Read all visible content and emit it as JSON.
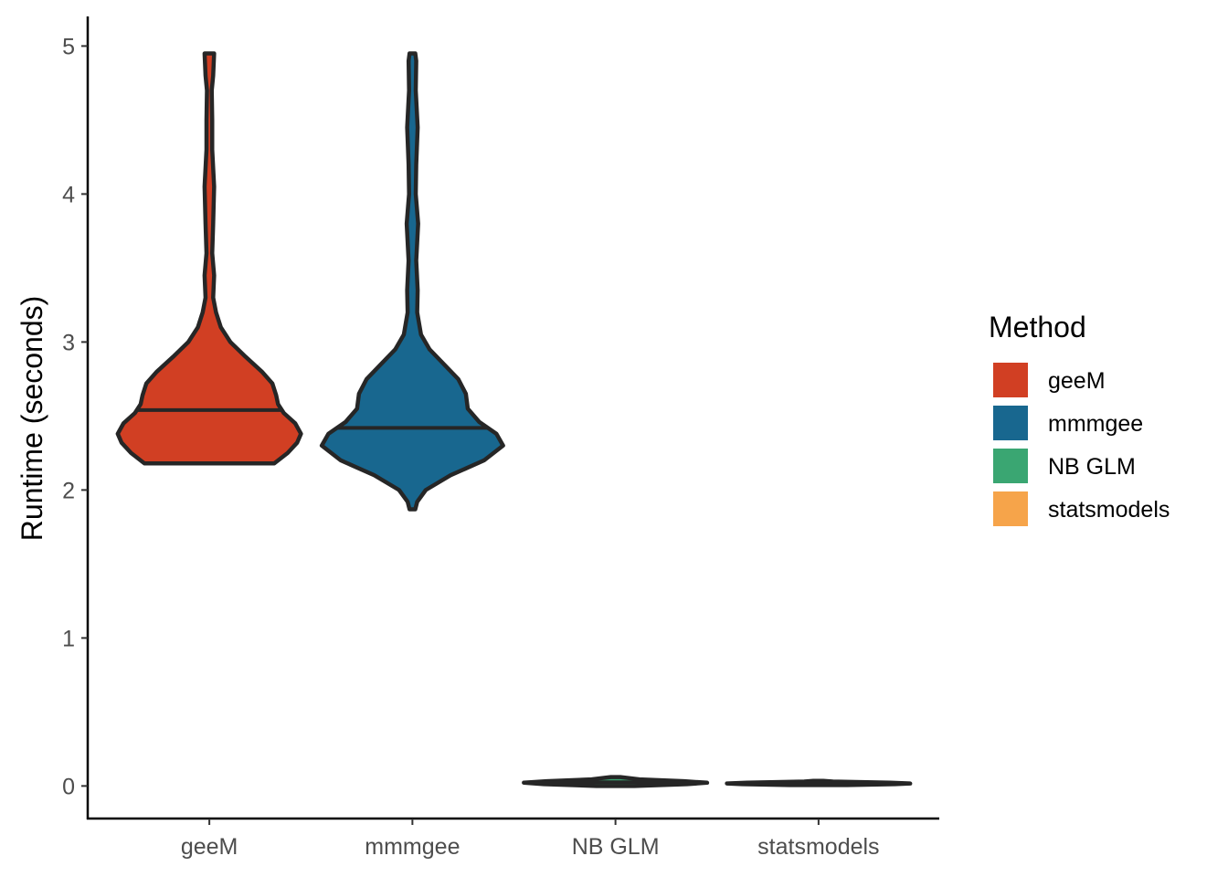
{
  "chart_data": {
    "type": "violin",
    "ylabel": "Runtime (seconds)",
    "xlabel": "",
    "ylim": [
      -0.22,
      5.2
    ],
    "yticks": [
      0,
      1,
      2,
      3,
      4,
      5
    ],
    "categories": [
      "geeM",
      "mmmgee",
      "NB GLM",
      "statsmodels"
    ],
    "grid": false,
    "legend": {
      "title": "Method",
      "placement": "right",
      "entries": [
        {
          "label": "geeM",
          "color": "#D13F23"
        },
        {
          "label": "mmmgee",
          "color": "#18678F"
        },
        {
          "label": "NB GLM",
          "color": "#3AA672"
        },
        {
          "label": "statsmodels",
          "color": "#F6A44A"
        }
      ]
    },
    "series": [
      {
        "name": "geeM",
        "color": "#D13F23",
        "median": 2.54,
        "density": [
          [
            2.18,
            0.68
          ],
          [
            2.25,
            0.82
          ],
          [
            2.32,
            0.92
          ],
          [
            2.38,
            0.96
          ],
          [
            2.45,
            0.9
          ],
          [
            2.52,
            0.78
          ],
          [
            2.58,
            0.72
          ],
          [
            2.64,
            0.7
          ],
          [
            2.72,
            0.66
          ],
          [
            2.8,
            0.55
          ],
          [
            2.9,
            0.38
          ],
          [
            3.0,
            0.22
          ],
          [
            3.1,
            0.12
          ],
          [
            3.2,
            0.07
          ],
          [
            3.3,
            0.04
          ],
          [
            3.45,
            0.05
          ],
          [
            3.6,
            0.03
          ],
          [
            3.8,
            0.04
          ],
          [
            4.05,
            0.05
          ],
          [
            4.3,
            0.03
          ],
          [
            4.5,
            0.03
          ],
          [
            4.7,
            0.025
          ],
          [
            4.8,
            0.04
          ],
          [
            4.95,
            0.05
          ]
        ]
      },
      {
        "name": "mmmgee",
        "color": "#18678F",
        "median": 2.42,
        "density": [
          [
            1.87,
            0.03
          ],
          [
            1.92,
            0.05
          ],
          [
            2.0,
            0.14
          ],
          [
            2.1,
            0.4
          ],
          [
            2.2,
            0.75
          ],
          [
            2.3,
            0.95
          ],
          [
            2.38,
            0.88
          ],
          [
            2.46,
            0.7
          ],
          [
            2.55,
            0.58
          ],
          [
            2.65,
            0.56
          ],
          [
            2.75,
            0.48
          ],
          [
            2.85,
            0.33
          ],
          [
            2.95,
            0.18
          ],
          [
            3.05,
            0.09
          ],
          [
            3.2,
            0.05
          ],
          [
            3.35,
            0.055
          ],
          [
            3.55,
            0.04
          ],
          [
            3.8,
            0.06
          ],
          [
            4.0,
            0.035
          ],
          [
            4.2,
            0.04
          ],
          [
            4.45,
            0.055
          ],
          [
            4.7,
            0.035
          ],
          [
            4.9,
            0.04
          ],
          [
            4.95,
            0.03
          ]
        ]
      },
      {
        "name": "NB GLM",
        "color": "#3AA672",
        "median": 0.025,
        "density": [
          [
            0.0,
            0.2
          ],
          [
            0.012,
            0.75
          ],
          [
            0.022,
            0.96
          ],
          [
            0.032,
            0.72
          ],
          [
            0.045,
            0.25
          ],
          [
            0.06,
            0.05
          ]
        ]
      },
      {
        "name": "statsmodels",
        "color": "#F6A44A",
        "median": 0.017,
        "density": [
          [
            0.006,
            0.3
          ],
          [
            0.012,
            0.8
          ],
          [
            0.017,
            0.96
          ],
          [
            0.022,
            0.75
          ],
          [
            0.03,
            0.15
          ],
          [
            0.035,
            0.05
          ]
        ]
      }
    ]
  }
}
